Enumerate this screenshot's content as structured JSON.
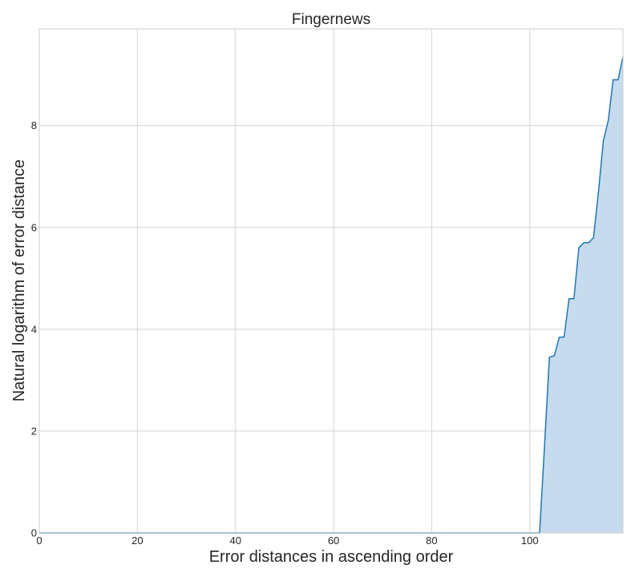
{
  "chart_data": {
    "type": "area",
    "title": "Fingernews",
    "xlabel": "Error distances in ascending order",
    "ylabel": "Natural logarithm of error distance",
    "xlim": [
      0,
      119
    ],
    "ylim": [
      0,
      9.9
    ],
    "xticks": [
      0,
      20,
      40,
      60,
      80,
      100
    ],
    "yticks": [
      0,
      2,
      4,
      6,
      8
    ],
    "grid": true,
    "line_color": "#1f77b4",
    "fill_color": "#c6dbed",
    "x": [
      0,
      102,
      103,
      104,
      105,
      106,
      107,
      108,
      109,
      110,
      111,
      112,
      113,
      114,
      115,
      116,
      117,
      118,
      119
    ],
    "y": [
      0,
      0,
      1.7,
      3.45,
      3.48,
      3.84,
      3.85,
      4.6,
      4.6,
      5.6,
      5.7,
      5.7,
      5.8,
      6.7,
      7.7,
      8.1,
      8.9,
      8.9,
      9.35
    ]
  }
}
